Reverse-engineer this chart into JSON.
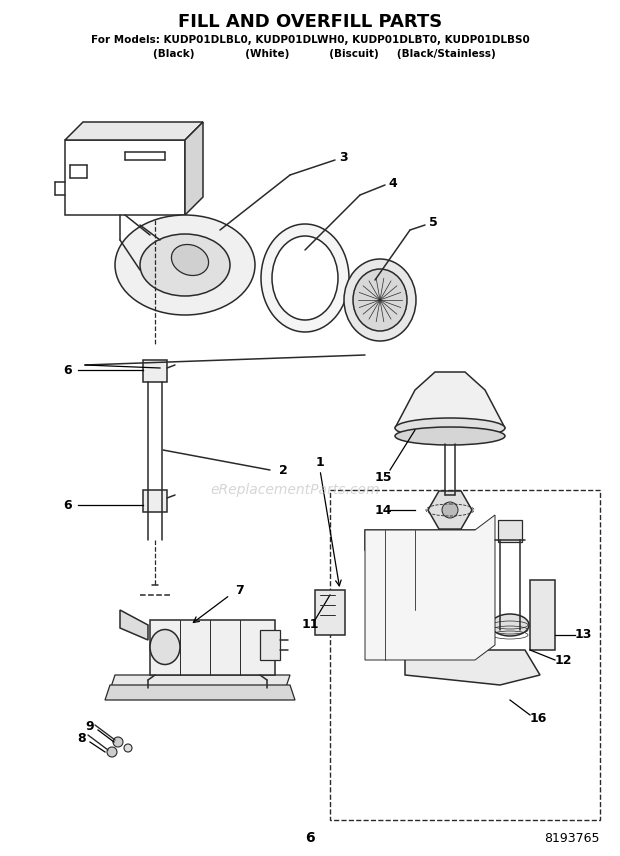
{
  "title": "FILL AND OVERFILL PARTS",
  "subtitle_line1": "For Models: KUDP01DLBL0, KUDP01DLWH0, KUDP01DLBT0, KUDP01DLBS0",
  "subtitle_line2": "        (Black)              (White)           (Biscuit)     (Black/Stainless)",
  "page_number": "6",
  "part_number": "8193765",
  "watermark": "eReplacementParts.com",
  "bg": "#ffffff",
  "lc": "#2a2a2a",
  "tc": "#000000"
}
